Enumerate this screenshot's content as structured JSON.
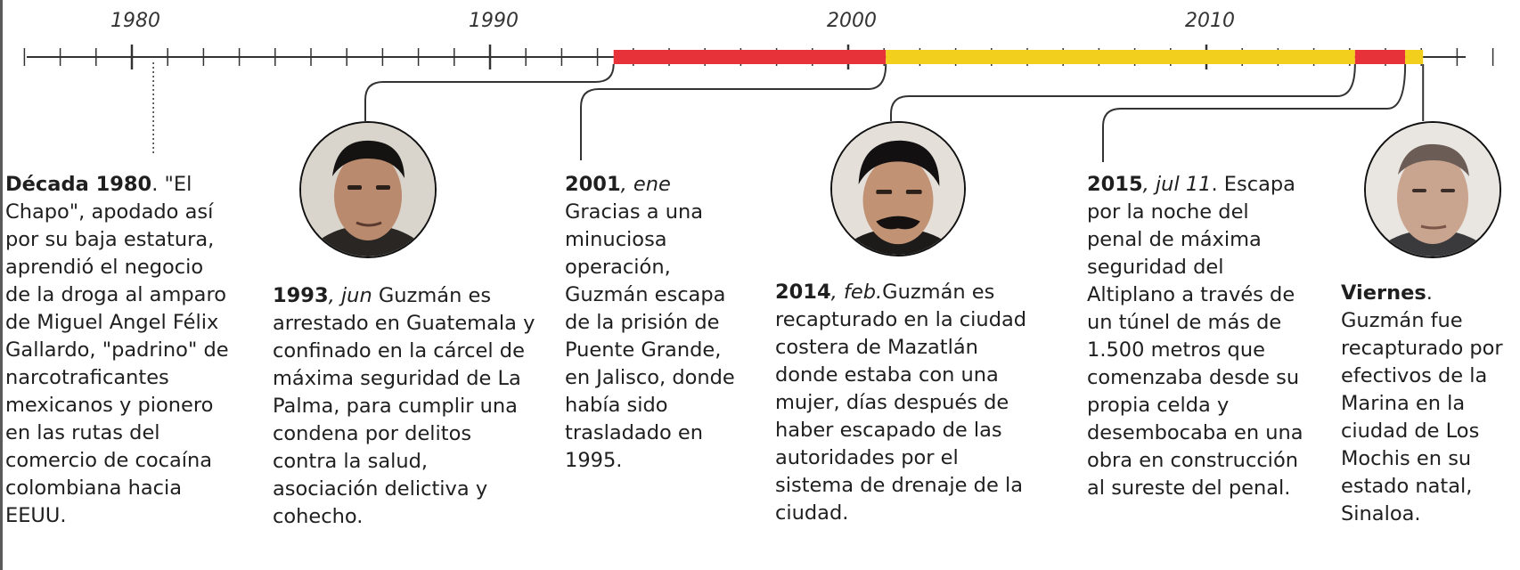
{
  "axis": {
    "years": [
      "1980",
      "1990",
      "2000",
      "2010"
    ]
  },
  "events": [
    {
      "lead": "Década 1980",
      "date": "",
      "text": ". \"El Chapo\", apodado así por su baja estatura, aprendió el negocio de la droga al amparo de Miguel Angel Félix Gallardo, \"padrino\" de narcotraficantes mexicanos y pionero en las rutas del comercio de cocaína colombiana hacia EEUU."
    },
    {
      "lead": "1993",
      "date": ", jun",
      "text": " Guzmán es arrestado en Guatemala y confinado en la cárcel de máxima seguridad de La Palma, para cumplir una condena por delitos contra la salud, asociación delictiva y cohecho."
    },
    {
      "lead": "2001",
      "date": ", ene",
      "text": " Gracias a una minuciosa operación, Guzmán escapa de la prisión de Puente Grande, en Jalisco, donde había sido trasladado en 1995."
    },
    {
      "lead": "2014",
      "date": ", feb.",
      "text": "Guzmán es recapturado en la ciudad costera de Mazatlán donde estaba con una mujer, días después de haber escapado de las autoridades por el sistema de drenaje de la ciudad."
    },
    {
      "lead": "2015",
      "date": ", jul 11",
      "text": ". Escapa por la noche del penal de máxima seguridad del Altiplano a través de un túnel de más de 1.500 metros que comenzaba desde su propia celda y desembocaba en una obra en construcción al sureste del penal."
    },
    {
      "lead": "Viernes",
      "date": "",
      "text": ". Guzmán fue recapturado por efectivos de la Marina en la ciudad de Los Mochis en su estado natal, Sinaloa."
    }
  ],
  "colors": {
    "in_prison": "#e8323a",
    "at_large": "#f2cf1d",
    "axis": "#333333"
  }
}
